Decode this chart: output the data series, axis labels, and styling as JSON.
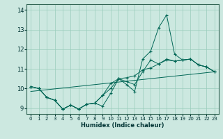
{
  "title": "",
  "xlabel": "Humidex (Indice chaleur)",
  "ylabel": "",
  "bg_color": "#cce8e0",
  "grid_color": "#99ccbb",
  "line_color": "#006655",
  "xlim": [
    -0.5,
    23.5
  ],
  "ylim": [
    8.7,
    14.3
  ],
  "yticks": [
    9,
    10,
    11,
    12,
    13,
    14
  ],
  "xticks": [
    0,
    1,
    2,
    3,
    4,
    5,
    6,
    7,
    8,
    9,
    10,
    11,
    12,
    13,
    14,
    15,
    16,
    17,
    18,
    19,
    20,
    21,
    22,
    23
  ],
  "series": [
    {
      "x": [
        0,
        1,
        2,
        3,
        4,
        5,
        6,
        7,
        8,
        9,
        10,
        11,
        12,
        13,
        14,
        15,
        16,
        17,
        18,
        19,
        20,
        21,
        22,
        23
      ],
      "y": [
        10.1,
        10.0,
        9.55,
        9.4,
        8.95,
        9.15,
        8.95,
        9.2,
        9.25,
        9.1,
        9.75,
        10.5,
        10.2,
        9.85,
        11.5,
        11.9,
        13.1,
        13.75,
        11.75,
        11.45,
        11.5,
        11.2,
        11.1,
        10.85
      ],
      "has_markers": true
    },
    {
      "x": [
        0,
        1,
        2,
        3,
        4,
        5,
        6,
        7,
        8,
        9,
        10,
        11,
        12,
        13,
        14,
        15,
        16,
        17,
        18,
        19,
        20,
        21,
        22,
        23
      ],
      "y": [
        10.1,
        10.0,
        9.55,
        9.4,
        8.95,
        9.15,
        8.95,
        9.2,
        9.25,
        9.65,
        10.25,
        10.5,
        10.55,
        10.65,
        10.95,
        11.05,
        11.25,
        11.45,
        11.4,
        11.45,
        11.5,
        11.2,
        11.1,
        10.85
      ],
      "has_markers": true
    },
    {
      "x": [
        0,
        23
      ],
      "y": [
        9.85,
        10.85
      ],
      "has_markers": false
    },
    {
      "x": [
        0,
        1,
        2,
        3,
        4,
        5,
        6,
        7,
        8,
        9,
        10,
        11,
        12,
        13,
        14,
        15,
        16,
        17,
        18,
        19,
        20,
        21,
        22,
        23
      ],
      "y": [
        10.1,
        10.0,
        9.55,
        9.4,
        8.95,
        9.15,
        8.95,
        9.2,
        9.25,
        9.65,
        10.0,
        10.5,
        10.35,
        10.2,
        10.85,
        11.45,
        11.25,
        11.5,
        11.4,
        11.45,
        11.5,
        11.2,
        11.1,
        10.85
      ],
      "has_markers": true
    }
  ]
}
